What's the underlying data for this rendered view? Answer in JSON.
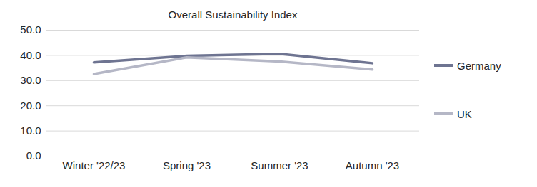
{
  "chart_data": {
    "type": "line",
    "title": "Overall Sustainability Index",
    "categories": [
      "Winter '22/23",
      "Spring '23",
      "Summer '23",
      "Autumn '23"
    ],
    "series": [
      {
        "name": "Germany",
        "color": "#6e7491",
        "values": [
          37.2,
          39.8,
          40.6,
          36.9
        ]
      },
      {
        "name": "UK",
        "color": "#b5b7c6",
        "values": [
          32.6,
          39.2,
          37.6,
          34.4
        ]
      }
    ],
    "ylim": [
      0,
      50
    ],
    "yticks": [
      {
        "value": 0,
        "label": "0.0"
      },
      {
        "value": 10,
        "label": "10.0"
      },
      {
        "value": 20,
        "label": "20.0"
      },
      {
        "value": 30,
        "label": "30.0"
      },
      {
        "value": 40,
        "label": "40.0"
      },
      {
        "value": 50,
        "label": "50.0"
      }
    ],
    "grid": true,
    "legend": "right"
  }
}
